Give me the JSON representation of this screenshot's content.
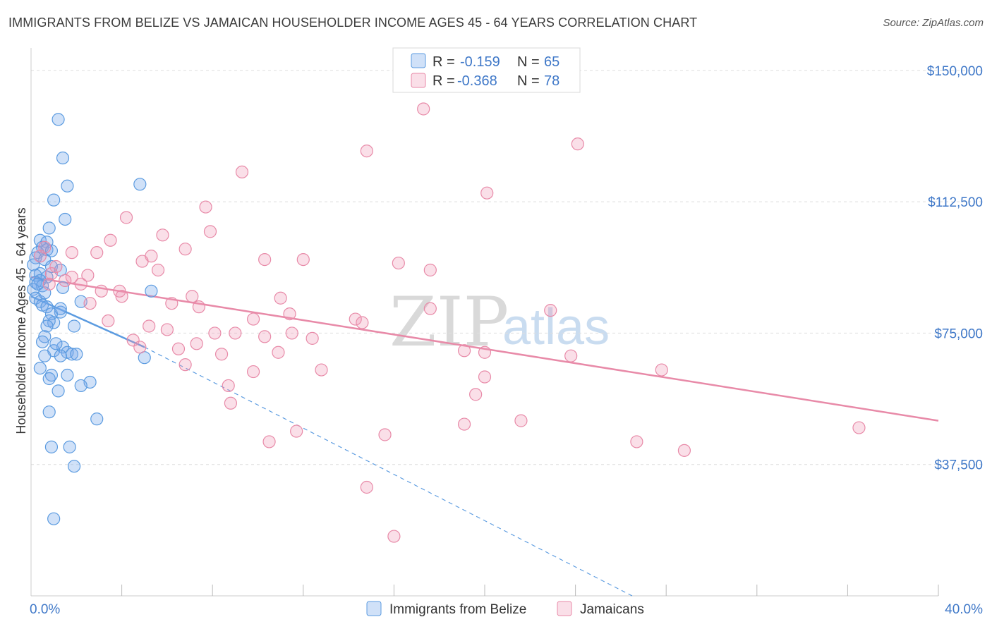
{
  "header": {
    "title": "IMMIGRANTS FROM BELIZE VS JAMAICAN HOUSEHOLDER INCOME AGES 45 - 64 YEARS CORRELATION CHART",
    "source": "Source: ZipAtlas.com"
  },
  "watermark": {
    "zip": "ZIP",
    "atlas": "atlas"
  },
  "legend_top": {
    "r_label": "R =",
    "n_label": "N =",
    "rows": [
      {
        "r": "-0.159",
        "n": "65",
        "color": "#5b9be0"
      },
      {
        "r": "-0.368",
        "n": "78",
        "color": "#e88aa8"
      }
    ]
  },
  "chart_data": {
    "type": "scatter",
    "title": "IMMIGRANTS FROM BELIZE VS JAMAICAN HOUSEHOLDER INCOME AGES 45 - 64 YEARS CORRELATION CHART",
    "xlabel": "",
    "ylabel": "Householder Income Ages 45 - 64 years",
    "xlim": [
      0,
      40
    ],
    "ylim": [
      0,
      155000
    ],
    "y_ticks": [
      {
        "value": 37500,
        "label": "$37,500"
      },
      {
        "value": 75000,
        "label": "$75,000"
      },
      {
        "value": 112500,
        "label": "$112,500"
      },
      {
        "value": 150000,
        "label": "$150,000"
      }
    ],
    "x_tick_labels": {
      "min": "0.0%",
      "max": "40.0%"
    },
    "x_minor_ticks": [
      4,
      8,
      12,
      16,
      20,
      24,
      28,
      32,
      36,
      40
    ],
    "grid": true,
    "legend": "bottom-center",
    "series": [
      {
        "name": "Immigrants from Belize",
        "color": "#5b9be0",
        "fill": "rgba(120,170,235,0.35)",
        "trend": {
          "x0": 0,
          "y0": 85500,
          "x1": 5.0,
          "y1": 71000,
          "dashed_to_x": 26.5,
          "dashed_to_y": 0
        },
        "points": [
          [
            1.2,
            136000
          ],
          [
            1.4,
            125000
          ],
          [
            1.6,
            117000
          ],
          [
            4.8,
            117500
          ],
          [
            1.0,
            113000
          ],
          [
            1.5,
            107500
          ],
          [
            0.8,
            105000
          ],
          [
            0.4,
            101500
          ],
          [
            0.7,
            101000
          ],
          [
            0.5,
            99500
          ],
          [
            0.7,
            98800
          ],
          [
            0.9,
            98500
          ],
          [
            0.3,
            98000
          ],
          [
            0.2,
            96500
          ],
          [
            0.6,
            96000
          ],
          [
            0.1,
            94500
          ],
          [
            0.9,
            94000
          ],
          [
            1.3,
            93000
          ],
          [
            0.4,
            92000
          ],
          [
            0.2,
            91500
          ],
          [
            0.7,
            91000
          ],
          [
            0.4,
            90000
          ],
          [
            0.2,
            89500
          ],
          [
            0.5,
            88500
          ],
          [
            1.4,
            88000
          ],
          [
            0.1,
            87500
          ],
          [
            5.3,
            87000
          ],
          [
            0.2,
            85000
          ],
          [
            0.4,
            84000
          ],
          [
            2.2,
            84000
          ],
          [
            0.5,
            83000
          ],
          [
            0.7,
            82500
          ],
          [
            1.3,
            81000
          ],
          [
            0.9,
            80500
          ],
          [
            1.0,
            78000
          ],
          [
            0.8,
            78500
          ],
          [
            0.7,
            77000
          ],
          [
            1.9,
            77000
          ],
          [
            0.6,
            74000
          ],
          [
            0.5,
            72500
          ],
          [
            1.4,
            71000
          ],
          [
            1.0,
            70000
          ],
          [
            1.6,
            69500
          ],
          [
            1.8,
            69000
          ],
          [
            1.3,
            68500
          ],
          [
            0.6,
            68500
          ],
          [
            5.0,
            68000
          ],
          [
            0.4,
            65000
          ],
          [
            0.9,
            63000
          ],
          [
            1.6,
            63000
          ],
          [
            0.8,
            62000
          ],
          [
            2.6,
            61000
          ],
          [
            2.2,
            60000
          ],
          [
            1.2,
            58500
          ],
          [
            0.8,
            52500
          ],
          [
            2.9,
            50500
          ],
          [
            0.9,
            42500
          ],
          [
            1.7,
            42500
          ],
          [
            1.9,
            37000
          ],
          [
            1.0,
            22000
          ],
          [
            1.3,
            82000
          ],
          [
            0.3,
            89000
          ],
          [
            0.6,
            86500
          ],
          [
            2.0,
            69000
          ],
          [
            1.1,
            72000
          ]
        ]
      },
      {
        "name": "Jamaicans",
        "color": "#e88aa8",
        "fill": "rgba(240,150,180,0.30)",
        "trend": {
          "x0": 0,
          "y0": 91000,
          "x1": 40,
          "y1": 50000
        },
        "points": [
          [
            17.3,
            139000
          ],
          [
            24.1,
            129000
          ],
          [
            14.8,
            127000
          ],
          [
            9.3,
            121000
          ],
          [
            20.1,
            115000
          ],
          [
            7.7,
            111000
          ],
          [
            4.2,
            108000
          ],
          [
            7.9,
            104000
          ],
          [
            5.8,
            103000
          ],
          [
            3.5,
            101500
          ],
          [
            6.8,
            99000
          ],
          [
            0.6,
            99500
          ],
          [
            1.8,
            98000
          ],
          [
            2.9,
            98000
          ],
          [
            5.3,
            97000
          ],
          [
            0.4,
            97000
          ],
          [
            10.3,
            96000
          ],
          [
            12.0,
            96000
          ],
          [
            4.9,
            95500
          ],
          [
            16.2,
            95000
          ],
          [
            1.1,
            94000
          ],
          [
            0.9,
            92000
          ],
          [
            17.6,
            93000
          ],
          [
            5.6,
            93000
          ],
          [
            2.5,
            91500
          ],
          [
            1.8,
            91000
          ],
          [
            1.5,
            90000
          ],
          [
            0.8,
            89000
          ],
          [
            2.2,
            89000
          ],
          [
            3.1,
            87000
          ],
          [
            3.9,
            87000
          ],
          [
            4.0,
            85500
          ],
          [
            7.1,
            85500
          ],
          [
            11.0,
            85000
          ],
          [
            2.6,
            83500
          ],
          [
            6.2,
            83500
          ],
          [
            7.4,
            82500
          ],
          [
            17.6,
            82000
          ],
          [
            22.9,
            81500
          ],
          [
            11.4,
            80500
          ],
          [
            9.8,
            79000
          ],
          [
            14.3,
            79000
          ],
          [
            3.4,
            78500
          ],
          [
            14.6,
            78000
          ],
          [
            5.2,
            77000
          ],
          [
            6.0,
            76000
          ],
          [
            8.1,
            75000
          ],
          [
            9.0,
            75000
          ],
          [
            11.5,
            75000
          ],
          [
            10.3,
            74000
          ],
          [
            12.4,
            73500
          ],
          [
            4.5,
            73000
          ],
          [
            7.3,
            72000
          ],
          [
            4.8,
            71000
          ],
          [
            6.5,
            70500
          ],
          [
            19.1,
            70000
          ],
          [
            20.0,
            69500
          ],
          [
            10.9,
            69500
          ],
          [
            8.4,
            69000
          ],
          [
            23.8,
            68500
          ],
          [
            6.8,
            66000
          ],
          [
            12.8,
            64500
          ],
          [
            9.8,
            64000
          ],
          [
            27.8,
            64500
          ],
          [
            20.0,
            62500
          ],
          [
            8.7,
            60000
          ],
          [
            19.6,
            57500
          ],
          [
            8.8,
            55000
          ],
          [
            21.6,
            50000
          ],
          [
            19.1,
            49000
          ],
          [
            36.5,
            48000
          ],
          [
            11.7,
            47000
          ],
          [
            15.6,
            46000
          ],
          [
            10.5,
            44000
          ],
          [
            26.7,
            44000
          ],
          [
            28.8,
            41500
          ],
          [
            14.8,
            31000
          ],
          [
            16.0,
            17000
          ]
        ]
      }
    ]
  }
}
